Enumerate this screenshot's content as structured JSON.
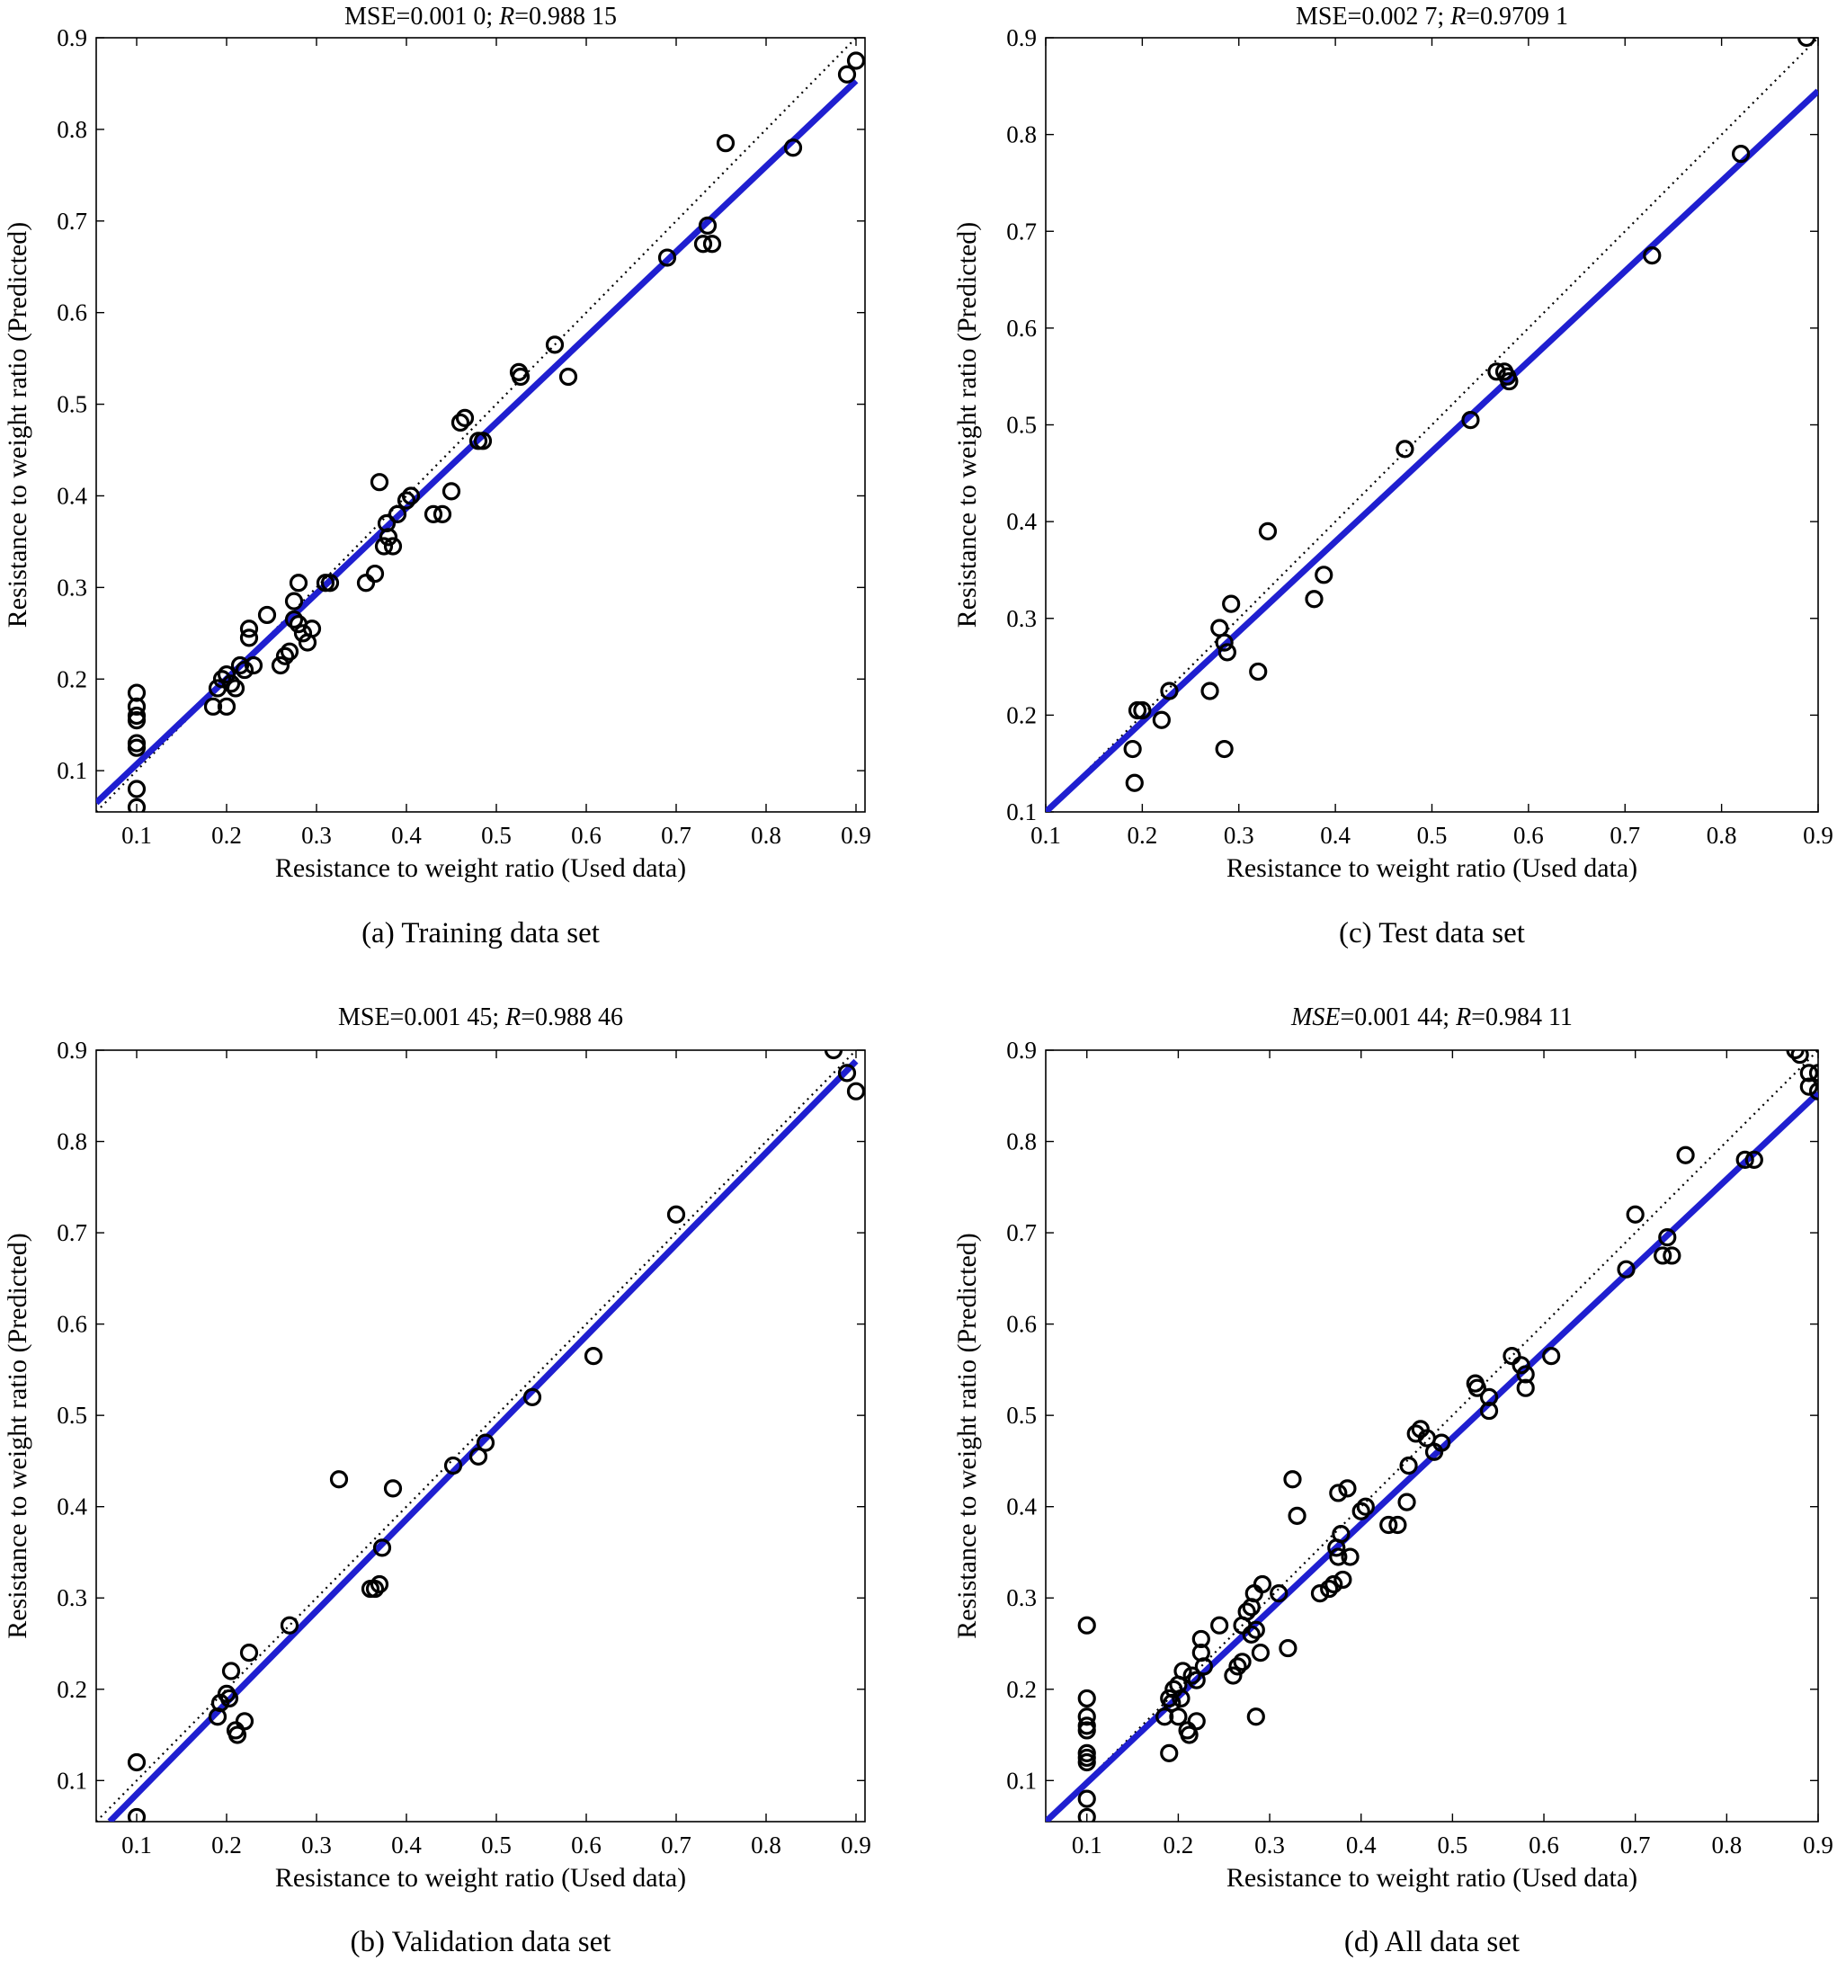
{
  "colors": {
    "fit_line": "#1f1fd0",
    "markers": "#000000",
    "identity_line": "#000000",
    "background": "#ffffff"
  },
  "panels": [
    {
      "id": "a",
      "caption": "(a) Training data set",
      "title_parts": [
        {
          "text": "MSE=0.001 0; ",
          "italic": false
        },
        {
          "text": "R",
          "italic": true
        },
        {
          "text": "=0.988 15",
          "italic": false
        }
      ],
      "xlabel": "Resistance to weight ratio (Used data)",
      "ylabel": "Resistance to weight ratio (Predicted)",
      "chart_data": {
        "type": "scatter",
        "xlim": [
          0.055,
          0.91
        ],
        "ylim": [
          0.055,
          0.9
        ],
        "xticks": [
          "0.1",
          "0.2",
          "0.3",
          "0.4",
          "0.5",
          "0.6",
          "0.7",
          "0.8",
          "0.9"
        ],
        "yticks": [
          "0.1",
          "0.2",
          "0.3",
          "0.4",
          "0.5",
          "0.6",
          "0.7",
          "0.8",
          "0.9"
        ],
        "fit_line": [
          [
            0.055,
            0.065
          ],
          [
            0.9,
            0.853
          ]
        ],
        "identity_line": [
          [
            0.055,
            0.055
          ],
          [
            0.9,
            0.9
          ]
        ],
        "points": [
          [
            0.1,
            0.185
          ],
          [
            0.1,
            0.17
          ],
          [
            0.1,
            0.16
          ],
          [
            0.1,
            0.155
          ],
          [
            0.1,
            0.13
          ],
          [
            0.1,
            0.125
          ],
          [
            0.1,
            0.08
          ],
          [
            0.1,
            0.06
          ],
          [
            0.185,
            0.17
          ],
          [
            0.19,
            0.19
          ],
          [
            0.195,
            0.2
          ],
          [
            0.2,
            0.205
          ],
          [
            0.2,
            0.17
          ],
          [
            0.205,
            0.195
          ],
          [
            0.21,
            0.19
          ],
          [
            0.215,
            0.215
          ],
          [
            0.22,
            0.21
          ],
          [
            0.225,
            0.245
          ],
          [
            0.225,
            0.255
          ],
          [
            0.23,
            0.215
          ],
          [
            0.245,
            0.27
          ],
          [
            0.26,
            0.215
          ],
          [
            0.265,
            0.225
          ],
          [
            0.27,
            0.23
          ],
          [
            0.275,
            0.285
          ],
          [
            0.275,
            0.265
          ],
          [
            0.28,
            0.26
          ],
          [
            0.28,
            0.305
          ],
          [
            0.285,
            0.25
          ],
          [
            0.29,
            0.24
          ],
          [
            0.295,
            0.255
          ],
          [
            0.31,
            0.305
          ],
          [
            0.315,
            0.305
          ],
          [
            0.355,
            0.305
          ],
          [
            0.365,
            0.315
          ],
          [
            0.37,
            0.415
          ],
          [
            0.375,
            0.345
          ],
          [
            0.378,
            0.37
          ],
          [
            0.38,
            0.355
          ],
          [
            0.385,
            0.345
          ],
          [
            0.39,
            0.38
          ],
          [
            0.4,
            0.395
          ],
          [
            0.405,
            0.4
          ],
          [
            0.43,
            0.38
          ],
          [
            0.44,
            0.38
          ],
          [
            0.45,
            0.405
          ],
          [
            0.46,
            0.48
          ],
          [
            0.465,
            0.485
          ],
          [
            0.48,
            0.46
          ],
          [
            0.485,
            0.46
          ],
          [
            0.525,
            0.535
          ],
          [
            0.527,
            0.53
          ],
          [
            0.565,
            0.565
          ],
          [
            0.58,
            0.53
          ],
          [
            0.69,
            0.66
          ],
          [
            0.73,
            0.675
          ],
          [
            0.735,
            0.695
          ],
          [
            0.74,
            0.675
          ],
          [
            0.755,
            0.785
          ],
          [
            0.83,
            0.78
          ],
          [
            0.89,
            0.86
          ],
          [
            0.9,
            0.875
          ]
        ]
      }
    },
    {
      "id": "c",
      "caption": "(c) Test data set",
      "title_parts": [
        {
          "text": "MSE=0.002 7; ",
          "italic": false
        },
        {
          "text": "R",
          "italic": true
        },
        {
          "text": "=0.9709 1",
          "italic": false
        }
      ],
      "xlabel": "Resistance to weight ratio (Used data)",
      "ylabel": "Resistance to weight ratio (Predicted)",
      "chart_data": {
        "type": "scatter",
        "xlim": [
          0.1,
          0.9
        ],
        "ylim": [
          0.1,
          0.9
        ],
        "xticks": [
          "0.1",
          "0.2",
          "0.3",
          "0.4",
          "0.5",
          "0.6",
          "0.7",
          "0.8",
          "0.9"
        ],
        "yticks": [
          "0.1",
          "0.2",
          "0.3",
          "0.4",
          "0.5",
          "0.6",
          "0.7",
          "0.8",
          "0.9"
        ],
        "fit_line": [
          [
            0.1,
            0.1
          ],
          [
            0.9,
            0.845
          ]
        ],
        "identity_line": [
          [
            0.1,
            0.1
          ],
          [
            0.9,
            0.9
          ]
        ],
        "points": [
          [
            0.19,
            0.165
          ],
          [
            0.192,
            0.13
          ],
          [
            0.195,
            0.205
          ],
          [
            0.2,
            0.205
          ],
          [
            0.22,
            0.195
          ],
          [
            0.228,
            0.225
          ],
          [
            0.27,
            0.225
          ],
          [
            0.28,
            0.29
          ],
          [
            0.285,
            0.275
          ],
          [
            0.285,
            0.165
          ],
          [
            0.288,
            0.265
          ],
          [
            0.292,
            0.315
          ],
          [
            0.32,
            0.245
          ],
          [
            0.33,
            0.39
          ],
          [
            0.378,
            0.32
          ],
          [
            0.388,
            0.345
          ],
          [
            0.472,
            0.475
          ],
          [
            0.54,
            0.505
          ],
          [
            0.567,
            0.555
          ],
          [
            0.575,
            0.555
          ],
          [
            0.578,
            0.55
          ],
          [
            0.58,
            0.545
          ],
          [
            0.728,
            0.675
          ],
          [
            0.82,
            0.78
          ],
          [
            0.888,
            0.9
          ]
        ]
      }
    },
    {
      "id": "b",
      "caption": "(b) Validation data set",
      "title_parts": [
        {
          "text": "MSE=0.001 45; ",
          "italic": false
        },
        {
          "text": "R",
          "italic": true
        },
        {
          "text": "=0.988 46",
          "italic": false
        }
      ],
      "xlabel": "Resistance to weight ratio (Used data)",
      "ylabel": "Resistance to weight ratio (Predicted)",
      "chart_data": {
        "type": "scatter",
        "xlim": [
          0.055,
          0.91
        ],
        "ylim": [
          0.055,
          0.9
        ],
        "xticks": [
          "0.1",
          "0.2",
          "0.3",
          "0.4",
          "0.5",
          "0.6",
          "0.7",
          "0.8",
          "0.9"
        ],
        "yticks": [
          "0.1",
          "0.2",
          "0.3",
          "0.4",
          "0.5",
          "0.6",
          "0.7",
          "0.8",
          "0.9"
        ],
        "fit_line": [
          [
            0.07,
            0.055
          ],
          [
            0.9,
            0.888
          ]
        ],
        "identity_line": [
          [
            0.055,
            0.055
          ],
          [
            0.9,
            0.9
          ]
        ],
        "points": [
          [
            0.1,
            0.12
          ],
          [
            0.1,
            0.06
          ],
          [
            0.19,
            0.17
          ],
          [
            0.193,
            0.185
          ],
          [
            0.2,
            0.195
          ],
          [
            0.203,
            0.19
          ],
          [
            0.205,
            0.22
          ],
          [
            0.21,
            0.155
          ],
          [
            0.212,
            0.15
          ],
          [
            0.22,
            0.165
          ],
          [
            0.225,
            0.24
          ],
          [
            0.27,
            0.27
          ],
          [
            0.325,
            0.43
          ],
          [
            0.36,
            0.31
          ],
          [
            0.365,
            0.31
          ],
          [
            0.37,
            0.315
          ],
          [
            0.373,
            0.355
          ],
          [
            0.385,
            0.42
          ],
          [
            0.452,
            0.445
          ],
          [
            0.48,
            0.455
          ],
          [
            0.488,
            0.47
          ],
          [
            0.54,
            0.52
          ],
          [
            0.608,
            0.565
          ],
          [
            0.7,
            0.72
          ],
          [
            0.875,
            0.9
          ],
          [
            0.89,
            0.875
          ],
          [
            0.9,
            0.855
          ]
        ]
      }
    },
    {
      "id": "d",
      "caption": "(d) All data set",
      "title_parts": [
        {
          "text": "MSE",
          "italic": true
        },
        {
          "text": "=0.001 44; ",
          "italic": false
        },
        {
          "text": "R",
          "italic": true
        },
        {
          "text": "=0.984 11",
          "italic": false
        }
      ],
      "xlabel": "Resistance to weight ratio (Used data)",
      "ylabel": "Resistance to weight ratio (Predicted)",
      "chart_data": {
        "type": "scatter",
        "xlim": [
          0.055,
          0.9
        ],
        "ylim": [
          0.055,
          0.9
        ],
        "xticks": [
          "0.1",
          "0.2",
          "0.3",
          "0.4",
          "0.5",
          "0.6",
          "0.7",
          "0.8",
          "0.9"
        ],
        "yticks": [
          "0.1",
          "0.2",
          "0.3",
          "0.4",
          "0.5",
          "0.6",
          "0.7",
          "0.8",
          "0.9"
        ],
        "fit_line": [
          [
            0.055,
            0.055
          ],
          [
            0.9,
            0.853
          ]
        ],
        "identity_line": [
          [
            0.055,
            0.055
          ],
          [
            0.9,
            0.9
          ]
        ],
        "points": [
          [
            0.1,
            0.27
          ],
          [
            0.1,
            0.19
          ],
          [
            0.1,
            0.17
          ],
          [
            0.1,
            0.16
          ],
          [
            0.1,
            0.155
          ],
          [
            0.1,
            0.13
          ],
          [
            0.1,
            0.125
          ],
          [
            0.1,
            0.12
          ],
          [
            0.1,
            0.08
          ],
          [
            0.1,
            0.06
          ],
          [
            0.185,
            0.17
          ],
          [
            0.19,
            0.19
          ],
          [
            0.19,
            0.13
          ],
          [
            0.193,
            0.185
          ],
          [
            0.195,
            0.2
          ],
          [
            0.2,
            0.205
          ],
          [
            0.2,
            0.17
          ],
          [
            0.203,
            0.19
          ],
          [
            0.205,
            0.22
          ],
          [
            0.21,
            0.155
          ],
          [
            0.212,
            0.15
          ],
          [
            0.215,
            0.215
          ],
          [
            0.22,
            0.165
          ],
          [
            0.22,
            0.21
          ],
          [
            0.225,
            0.24
          ],
          [
            0.225,
            0.255
          ],
          [
            0.228,
            0.225
          ],
          [
            0.245,
            0.27
          ],
          [
            0.26,
            0.215
          ],
          [
            0.265,
            0.225
          ],
          [
            0.27,
            0.23
          ],
          [
            0.27,
            0.27
          ],
          [
            0.275,
            0.285
          ],
          [
            0.28,
            0.26
          ],
          [
            0.28,
            0.29
          ],
          [
            0.283,
            0.305
          ],
          [
            0.285,
            0.265
          ],
          [
            0.285,
            0.17
          ],
          [
            0.29,
            0.24
          ],
          [
            0.292,
            0.315
          ],
          [
            0.31,
            0.305
          ],
          [
            0.32,
            0.245
          ],
          [
            0.325,
            0.43
          ],
          [
            0.33,
            0.39
          ],
          [
            0.355,
            0.305
          ],
          [
            0.365,
            0.31
          ],
          [
            0.37,
            0.315
          ],
          [
            0.373,
            0.355
          ],
          [
            0.375,
            0.345
          ],
          [
            0.375,
            0.415
          ],
          [
            0.378,
            0.37
          ],
          [
            0.38,
            0.32
          ],
          [
            0.385,
            0.42
          ],
          [
            0.388,
            0.345
          ],
          [
            0.4,
            0.395
          ],
          [
            0.405,
            0.4
          ],
          [
            0.43,
            0.38
          ],
          [
            0.44,
            0.38
          ],
          [
            0.45,
            0.405
          ],
          [
            0.452,
            0.445
          ],
          [
            0.46,
            0.48
          ],
          [
            0.465,
            0.485
          ],
          [
            0.472,
            0.475
          ],
          [
            0.48,
            0.46
          ],
          [
            0.488,
            0.47
          ],
          [
            0.525,
            0.535
          ],
          [
            0.527,
            0.53
          ],
          [
            0.54,
            0.505
          ],
          [
            0.54,
            0.52
          ],
          [
            0.565,
            0.565
          ],
          [
            0.575,
            0.555
          ],
          [
            0.58,
            0.545
          ],
          [
            0.58,
            0.53
          ],
          [
            0.608,
            0.565
          ],
          [
            0.69,
            0.66
          ],
          [
            0.7,
            0.72
          ],
          [
            0.73,
            0.675
          ],
          [
            0.735,
            0.695
          ],
          [
            0.74,
            0.675
          ],
          [
            0.755,
            0.785
          ],
          [
            0.82,
            0.78
          ],
          [
            0.83,
            0.78
          ],
          [
            0.875,
            0.9
          ],
          [
            0.88,
            0.895
          ],
          [
            0.89,
            0.875
          ],
          [
            0.89,
            0.86
          ],
          [
            0.9,
            0.875
          ],
          [
            0.9,
            0.855
          ]
        ]
      }
    }
  ]
}
